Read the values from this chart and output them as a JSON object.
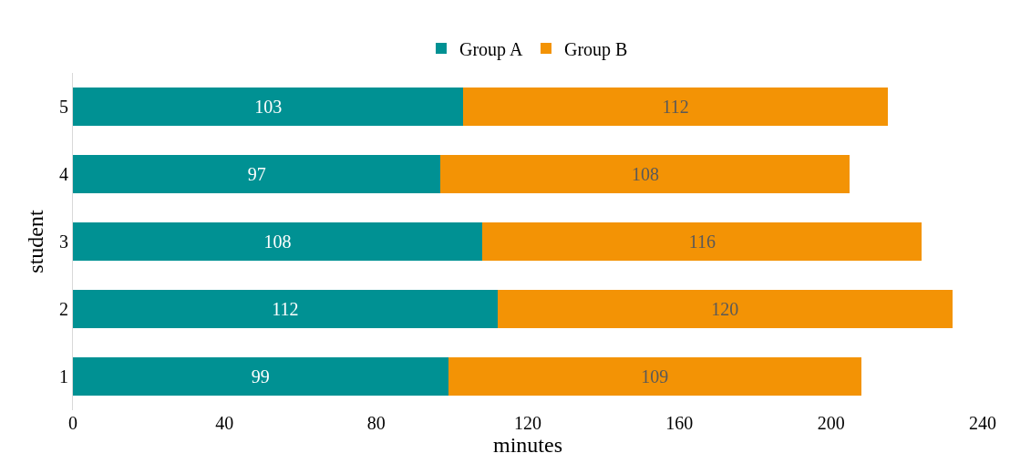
{
  "chart_data": {
    "type": "bar",
    "orientation": "horizontal",
    "stacked": true,
    "xlabel": "minutes",
    "ylabel": "student",
    "categories": [
      "5",
      "4",
      "3",
      "2",
      "1"
    ],
    "series": [
      {
        "name": "Group A",
        "color": "#009193",
        "values": [
          103,
          97,
          108,
          112,
          99
        ]
      },
      {
        "name": "Group B",
        "color": "#f39305",
        "values": [
          112,
          108,
          116,
          120,
          109
        ]
      }
    ],
    "xlim": [
      0,
      240
    ],
    "xticks": [
      0,
      40,
      80,
      120,
      160,
      200,
      240
    ],
    "data_labels": true,
    "legend": "top"
  }
}
